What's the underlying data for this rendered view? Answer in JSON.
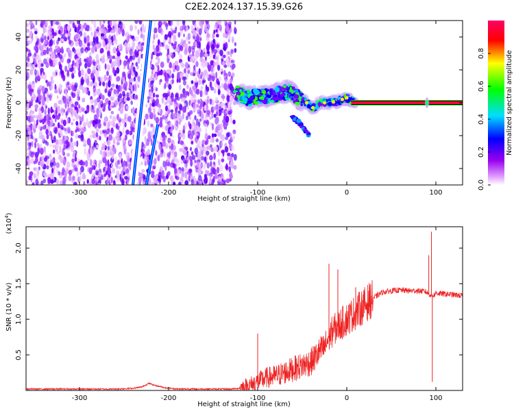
{
  "title": "C2E2.2024.137.15.39.G26",
  "spectrogram": {
    "type": "heatmap",
    "xlabel": "Height of straight line (km)",
    "ylabel": "Frequency (Hz)",
    "xlim": [
      -360,
      130
    ],
    "ylim": [
      -50,
      50
    ],
    "x_ticks": [
      -300,
      -200,
      -100,
      0,
      100
    ],
    "y_ticks": [
      -40,
      -20,
      0,
      20,
      40
    ],
    "colorbar": {
      "label": "Normalized spectral amplitude",
      "range": [
        0,
        1
      ],
      "ticks": [
        0.0,
        0.2,
        0.4,
        0.6,
        0.8
      ],
      "tick_labels": [
        "0.0",
        "0.2",
        "0.4",
        "0.6",
        "0.8"
      ],
      "colors": [
        "#ffffff",
        "#9900ee",
        "#0000ff",
        "#00ddff",
        "#00ff00",
        "#ffff00",
        "#ff0000",
        "#ff0066"
      ]
    },
    "features": {
      "noise_region_x": [
        -360,
        -125
      ],
      "steep_line_1": {
        "x": [
          -240,
          -220
        ],
        "y": [
          -50,
          50
        ]
      },
      "steep_line_2": {
        "x": [
          -225,
          -212
        ],
        "y": [
          -50,
          -13
        ]
      },
      "central_band": [
        {
          "x": -125,
          "y": 6
        },
        {
          "x": -110,
          "y": 3
        },
        {
          "x": -95,
          "y": 4
        },
        {
          "x": -80,
          "y": 5
        },
        {
          "x": -65,
          "y": 7
        },
        {
          "x": -55,
          "y": 3
        },
        {
          "x": -45,
          "y": 0
        },
        {
          "x": -38,
          "y": -3
        },
        {
          "x": -30,
          "y": 0
        },
        {
          "x": -20,
          "y": 0
        },
        {
          "x": -10,
          "y": 1
        },
        {
          "x": 0,
          "y": 3
        },
        {
          "x": 10,
          "y": 0
        }
      ],
      "lower_branch": [
        {
          "x": -62,
          "y": -8
        },
        {
          "x": -52,
          "y": -13
        },
        {
          "x": -45,
          "y": -18
        },
        {
          "x": -42,
          "y": -20
        }
      ],
      "stable_line": {
        "x": [
          5,
          130
        ],
        "y": 0
      },
      "spike_x": 90
    }
  },
  "chart_data": {
    "type": "line",
    "xlabel": "Height of straight line (km)",
    "ylabel": "SNR (10 * v/v)",
    "y_scale_label": "(x10",
    "y_scale_exponent": "4",
    "y_scale_close": ")",
    "xlim": [
      -360,
      130
    ],
    "ylim": [
      0,
      2.3
    ],
    "x_ticks": [
      -300,
      -200,
      -100,
      0,
      100
    ],
    "y_ticks": [
      0.5,
      1.0,
      1.5,
      2.0
    ],
    "y_tick_labels": [
      "0.5",
      "1.0",
      "1.5",
      "2.0"
    ],
    "grid": false,
    "color": "#ee2222",
    "series": [
      {
        "x": [
          -360,
          -340,
          -320,
          -300,
          -280,
          -260,
          -240,
          -230,
          -222,
          -215,
          -205,
          -190,
          -170,
          -150,
          -130,
          -120,
          -110,
          -100,
          -90,
          -80,
          -70,
          -60,
          -50,
          -40,
          -30,
          -25,
          -20,
          -15,
          -10,
          -5,
          0,
          10,
          20,
          30,
          40,
          50,
          60,
          70,
          80,
          88,
          92,
          95,
          98,
          100,
          105,
          115,
          130
        ],
        "y": [
          0.02,
          0.02,
          0.02,
          0.02,
          0.02,
          0.02,
          0.03,
          0.05,
          0.1,
          0.07,
          0.04,
          0.02,
          0.02,
          0.02,
          0.02,
          0.03,
          0.06,
          0.12,
          0.18,
          0.2,
          0.25,
          0.3,
          0.35,
          0.4,
          0.55,
          0.6,
          0.75,
          0.85,
          0.9,
          0.95,
          1.0,
          1.1,
          1.2,
          1.3,
          1.38,
          1.4,
          1.41,
          1.4,
          1.4,
          1.39,
          1.36,
          1.33,
          1.34,
          1.37,
          1.36,
          1.35,
          1.33
        ]
      }
    ],
    "spikes": [
      {
        "x": -100,
        "y": 0.8
      },
      {
        "x": -20,
        "y": 1.78
      },
      {
        "x": -10,
        "y": 1.7
      },
      {
        "x": 10,
        "y": 1.45
      },
      {
        "x": 92,
        "y": 1.9
      },
      {
        "x": 95,
        "y": 2.23
      },
      {
        "x": 96,
        "y": 0.12
      }
    ]
  }
}
